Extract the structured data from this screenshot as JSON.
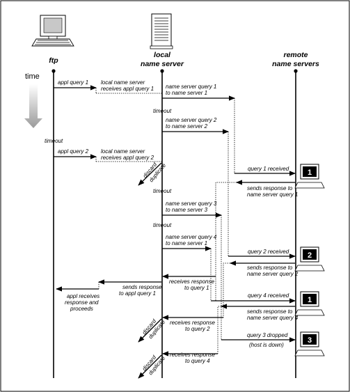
{
  "nodes": {
    "ftp": "ftp",
    "local_line1": "local",
    "local_line2": "name server",
    "remote_line1": "remote",
    "remote_line2": "name servers"
  },
  "time_label": "time",
  "labels": {
    "appl_query_1": "appl query 1",
    "local_receives_1a": "local name server",
    "local_receives_1b": "receives appl query 1",
    "ns_query_1a": "name server query 1",
    "ns_query_1b": "to name server 1",
    "timeout_local_1": "timeout",
    "ns_query_2a": "name server query 2",
    "ns_query_2b": "to name server 2",
    "timeout_ftp": "timeout",
    "appl_query_2": "appl query 2",
    "local_receives_2a": "local name server",
    "local_receives_2b": "receives appl query 2",
    "discard_1": "discard",
    "duplicate_1": "duplicate",
    "query_1_received": "query 1 received",
    "sends_resp_1a": "sends response to",
    "sends_resp_1b": "name server query 1",
    "timeout_local_2": "timeout",
    "ns_query_3a": "name server query 3",
    "ns_query_3b": "to name server 3",
    "timeout_local_3": "timeout",
    "ns_query_4a": "name server query 4",
    "ns_query_4b": "to name server 1",
    "query_2_received": "query 2 received",
    "sends_resp_2a": "sends response to",
    "sends_resp_2b": "name server query 2",
    "receives_resp_q1a": "receives response",
    "receives_resp_q1b": "to query 1",
    "sends_resp_appl_a": "sends response",
    "sends_resp_appl_b": "to appl query 1",
    "appl_receives_a": "appl receives",
    "appl_receives_b": "response and",
    "appl_receives_c": "proceeds",
    "query_4_received": "query 4 received",
    "sends_resp_4a": "sends response to",
    "sends_resp_4b": "name server query 4",
    "receives_resp_q2a": "receives response",
    "receives_resp_q2b": "to query 2",
    "discard_2": "discard",
    "duplicate_2": "duplicate",
    "query_3_dropped": "query 3 dropped",
    "host_down": "(host is down)",
    "receives_resp_q4a": "receives response",
    "receives_resp_q4b": "to query 4",
    "discard_3": "discard",
    "duplicate_3": "duplicate"
  },
  "servers": [
    "1",
    "2",
    "1",
    "3"
  ],
  "icons": {
    "ftp": "desktop-computer-icon",
    "local": "server-tower-icon",
    "remote": "terminal-icon"
  },
  "colors": {
    "ink": "#000000",
    "screen": "#c8c8c8",
    "gradient_top": "#ffffff",
    "gradient_bottom": "#9a9a9a"
  }
}
